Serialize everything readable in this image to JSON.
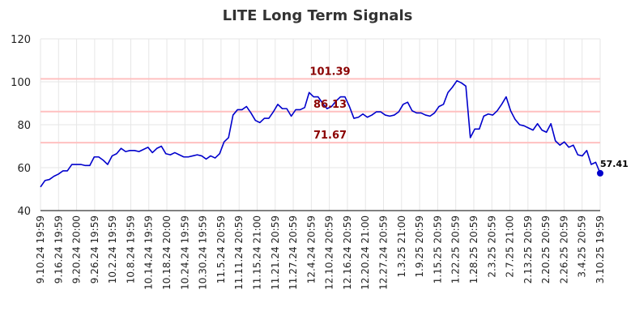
{
  "chart_data": {
    "type": "line",
    "title": "LITE Long Term Signals",
    "xlabel": "",
    "ylabel": "",
    "ylim": [
      40,
      120
    ],
    "yticks": [
      40,
      60,
      80,
      100,
      120
    ],
    "grid": true,
    "legend": "none",
    "x_tick_labels": [
      "9.10.24 19:59",
      "9.16.24 19:59",
      "9.20.24 20:00",
      "9.26.24 19:59",
      "10.2.24 19:59",
      "10.8.24 19:59",
      "10.14.24 19:59",
      "10.18.24 20:00",
      "10.24.24 19:59",
      "10.30.24 19:59",
      "11.5.24 20:59",
      "11.11.24 20:59",
      "11.15.24 21:00",
      "11.21.24 20:59",
      "11.27.24 20:59",
      "12.4.24 20:59",
      "12.10.24 20:59",
      "12.16.24 20:59",
      "12.20.24 21:00",
      "12.27.24 20:59",
      "1.3.25 21:00",
      "1.9.25 20:59",
      "1.15.25 20:59",
      "1.22.25 20:59",
      "1.28.25 20:59",
      "2.3.25 20:59",
      "2.7.25 21:00",
      "2.13.25 20:59",
      "2.20.25 20:59",
      "2.26.25 20:59",
      "3.4.25 20:59",
      "3.10.25 19:59"
    ],
    "series": [
      {
        "color": "#0000cc",
        "values": [
          51,
          54,
          54.5,
          56,
          57,
          58.5,
          58.5,
          61.5,
          61.5,
          61.5,
          61,
          61,
          65,
          65,
          63.5,
          61.5,
          65.5,
          66.5,
          69,
          67.5,
          68,
          68,
          67.5,
          68.5,
          69.5,
          67,
          69,
          70,
          66.5,
          66,
          67,
          66,
          65,
          65,
          65.5,
          66,
          65.5,
          64,
          65.5,
          64.5,
          66.5,
          72,
          74,
          84.5,
          87,
          87,
          88.5,
          85.5,
          82,
          81,
          83,
          83,
          86,
          89.5,
          87.5,
          87.5,
          84,
          87,
          87,
          88,
          95,
          93,
          93,
          90,
          87.5,
          88.5,
          91,
          93,
          93,
          88.5,
          83,
          83.5,
          85,
          83.5,
          84.5,
          86,
          86,
          84.5,
          84,
          84.5,
          86,
          89.5,
          90.5,
          86.5,
          85.5,
          85.5,
          84.5,
          84,
          85.5,
          88.5,
          89.5,
          95,
          97.5,
          100.5,
          99.5,
          98,
          74,
          78,
          78,
          84,
          85,
          84.5,
          86.5,
          89.5,
          93,
          86.5,
          82.5,
          80,
          79.5,
          78.5,
          77.5,
          80.5,
          77.5,
          76.5,
          80.5,
          72.5,
          70.5,
          72,
          69.5,
          70.5,
          66,
          65.5,
          68,
          61.5,
          62.5,
          57.41
        ]
      }
    ],
    "reference_lines": [
      {
        "value": 101.39,
        "label": "101.39",
        "color": "#ffc0c0",
        "label_color": "#8b0000"
      },
      {
        "value": 86.13,
        "label": "86.13",
        "color": "#ffc0c0",
        "label_color": "#8b0000"
      },
      {
        "value": 71.67,
        "label": "71.67",
        "color": "#ffc0c0",
        "label_color": "#8b0000"
      }
    ],
    "last_point": {
      "value": 57.41,
      "label": "57.41"
    }
  }
}
